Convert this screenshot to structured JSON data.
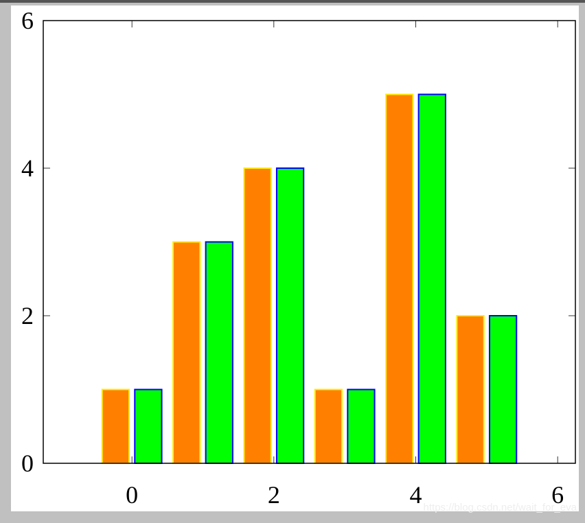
{
  "chart_data": {
    "type": "bar",
    "x": [
      0,
      1,
      2,
      3,
      4,
      5
    ],
    "series": [
      {
        "color": "#ff8000",
        "edge_color": "#ffee00",
        "values": [
          1,
          3,
          4,
          1,
          5,
          2
        ]
      },
      {
        "color": "#00ff00",
        "edge_color": "#0000ff",
        "values": [
          1,
          3,
          4,
          1,
          5,
          2
        ]
      }
    ],
    "xlim": [
      -1.25,
      6.25
    ],
    "xticks": [
      0,
      2,
      4,
      6
    ],
    "ylim": [
      0,
      6
    ],
    "yticks": [
      0,
      2,
      4,
      6
    ],
    "watermark": "https://blog.csdn.net/wait_for_eva"
  }
}
